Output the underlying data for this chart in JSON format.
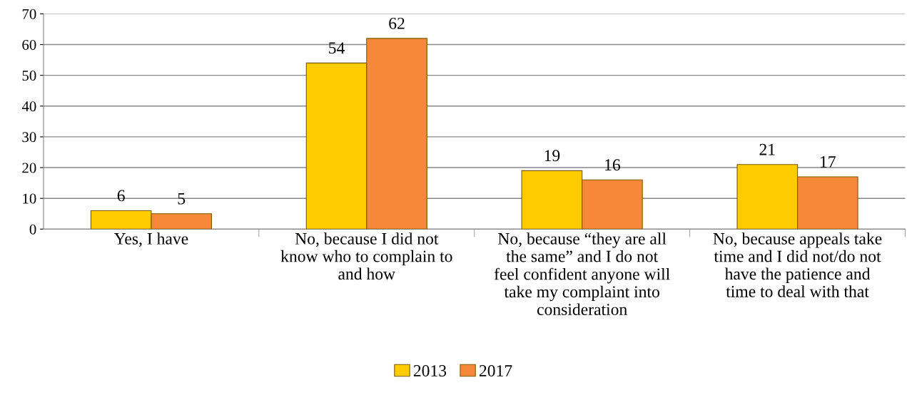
{
  "chart_data": {
    "type": "bar",
    "categories": [
      "Yes, I have",
      "No, because I did not\nknow who to complain to\nand how",
      "No, because “they are all\nthe same” and I do not\nfeel confident anyone will\ntake my complaint into\nconsideration",
      "No, because appeals take\ntime and I did not/do not\nhave the patience and\ntime to deal with that"
    ],
    "series": [
      {
        "name": "2013",
        "color": "#ffcc00",
        "values": [
          6,
          54,
          19,
          21
        ]
      },
      {
        "name": "2017",
        "color": "#f7883a",
        "values": [
          5,
          62,
          16,
          17
        ]
      }
    ],
    "ylim": [
      0,
      70
    ],
    "yticks": [
      0,
      10,
      20,
      30,
      40,
      50,
      60,
      70
    ],
    "grid": "y",
    "legend": "bottom",
    "data_labels": true
  }
}
